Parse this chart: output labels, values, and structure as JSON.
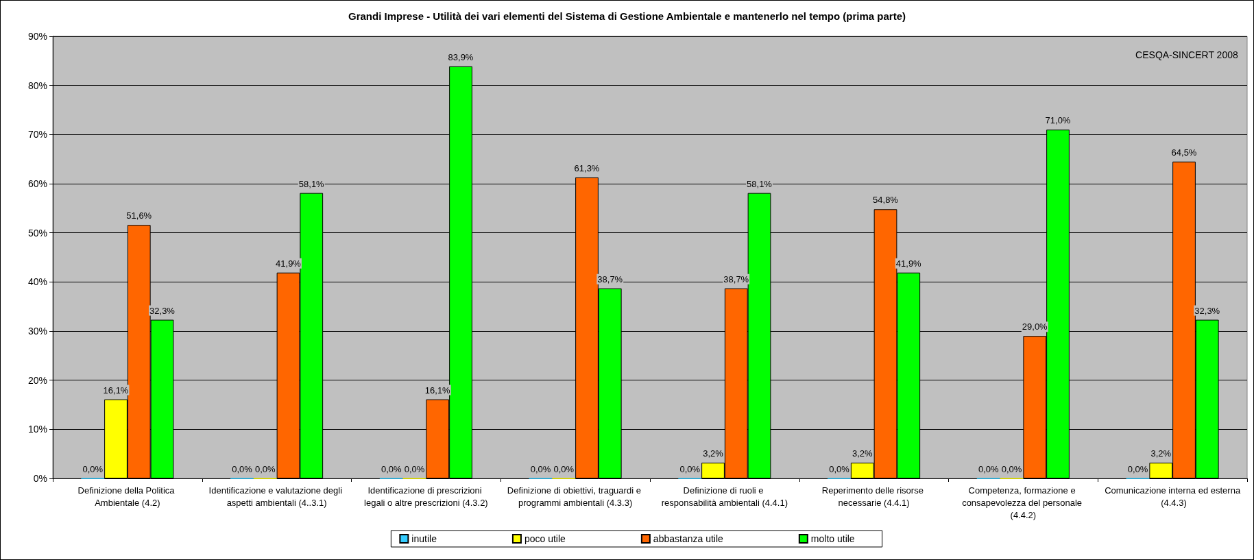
{
  "chart_data": {
    "type": "bar",
    "title": "Grandi Imprese - Utilità dei vari elementi del Sistema di Gestione Ambientale e mantenerlo nel tempo (prima parte)",
    "categories": [
      "Definizione della Politica Ambientale (4.2)",
      "Identificazione e valutazione degli aspetti ambientali (4..3.1)",
      "Identificazione di prescrizioni legali o altre prescrizioni (4.3.2)",
      "Definizione di obiettivi, traguardi e programmi ambientali (4.3.3)",
      "Definizione di ruoli e responsabilità ambientali (4.4.1)",
      "Reperimento delle risorse necessarie (4.4.1)",
      "Competenza, formazione e consapevolezza del personale (4.4.2)",
      "Comunicazione interna ed esterna (4.4.3)"
    ],
    "series": [
      {
        "name": "inutile",
        "color": "#33ccff",
        "values": [
          0,
          0,
          0,
          0,
          0,
          0,
          0,
          0
        ],
        "value_labels": [
          "0,0%",
          "0,0%",
          "0,0%",
          "0,0%",
          "0,0%",
          "0,0%",
          "0,0%",
          "0,0%"
        ]
      },
      {
        "name": "poco utile",
        "color": "#ffff00",
        "values": [
          16.1,
          0,
          0,
          0,
          3.2,
          3.2,
          0,
          3.2
        ],
        "value_labels": [
          "16,1%",
          "0,0%",
          "0,0%",
          "0,0%",
          "3,2%",
          "3,2%",
          "0,0%",
          "3,2%"
        ]
      },
      {
        "name": "abbastanza utile",
        "color": "#ff6600",
        "values": [
          51.6,
          41.9,
          16.1,
          61.3,
          38.7,
          54.8,
          29.0,
          64.5
        ],
        "value_labels": [
          "51,6%",
          "41,9%",
          "16,1%",
          "61,3%",
          "38,7%",
          "54,8%",
          "29,0%",
          "64,5%"
        ]
      },
      {
        "name": "molto utile",
        "color": "#00ff00",
        "values": [
          32.3,
          58.1,
          83.9,
          38.7,
          58.1,
          41.9,
          71.0,
          32.3
        ],
        "value_labels": [
          "32,3%",
          "58,1%",
          "83,9%",
          "38,7%",
          "58,1%",
          "41,9%",
          "71,0%",
          "32,3%"
        ]
      }
    ],
    "ylim": [
      0,
      90
    ],
    "yticks": [
      {
        "value": 0,
        "label": "0%"
      },
      {
        "value": 10,
        "label": "10%"
      },
      {
        "value": 20,
        "label": "20%"
      },
      {
        "value": 30,
        "label": "30%"
      },
      {
        "value": 40,
        "label": "40%"
      },
      {
        "value": 50,
        "label": "50%"
      },
      {
        "value": 60,
        "label": "60%"
      },
      {
        "value": 70,
        "label": "70%"
      },
      {
        "value": 80,
        "label": "80%"
      },
      {
        "value": 90,
        "label": "90%"
      }
    ],
    "grid": "y",
    "legend": "bottom",
    "annotations": [
      "CESQA-SINCERT 2008"
    ]
  }
}
